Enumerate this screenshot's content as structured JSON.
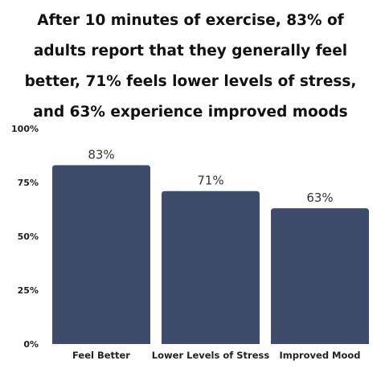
{
  "chart_data": {
    "type": "bar",
    "title": "After 10 minutes of exercise, 83% of\nadults report that they generally feel\nbetter, 71% feels lower levels of stress,\nand 63% experience improved moods",
    "categories": [
      "Feel Better",
      "Lower Levels of Stress",
      "Improved Mood"
    ],
    "values": [
      83,
      71,
      63
    ],
    "data_labels": [
      "83%",
      "71%",
      "63%"
    ],
    "ylim": [
      0,
      100
    ],
    "yticks": [
      0,
      25,
      50,
      75,
      100
    ],
    "ytick_labels": [
      "0%",
      "25%",
      "50%",
      "75%",
      "100%"
    ],
    "xlabel": "",
    "ylabel": "",
    "grid": false,
    "legend": "none",
    "colors": {
      "bar": "#3e4b6b",
      "text": "#222222"
    }
  }
}
